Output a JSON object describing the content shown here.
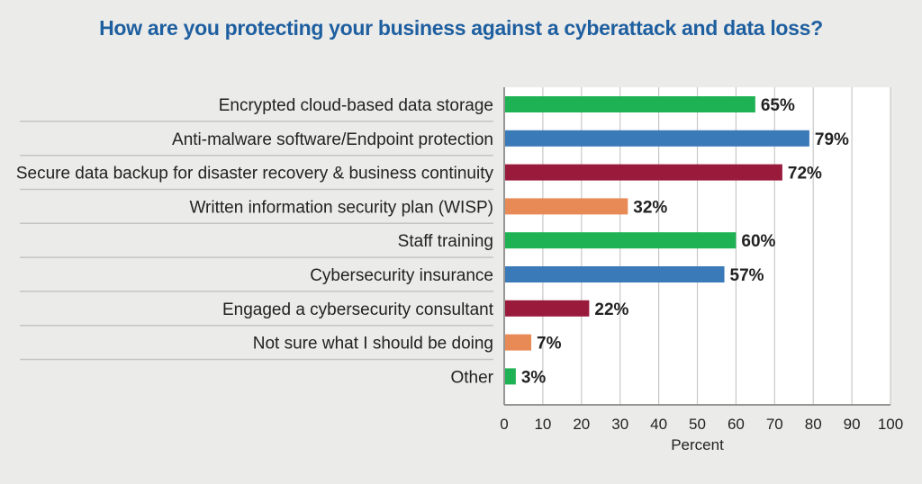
{
  "chart_data": {
    "type": "bar",
    "orientation": "horizontal",
    "title": "How are you protecting your business against a cyberattack and data loss?",
    "xlabel": "Percent",
    "ylabel": "",
    "xlim": [
      0,
      100
    ],
    "xticks": [
      0,
      10,
      20,
      30,
      40,
      50,
      60,
      70,
      80,
      90,
      100
    ],
    "grid": true,
    "categories": [
      "Encrypted cloud-based data storage",
      "Anti-malware software/Endpoint protection",
      "Secure data backup for disaster recovery & business continuity",
      "Written information security plan (WISP)",
      "Staff training",
      "Cybersecurity insurance",
      "Engaged a cybersecurity consultant",
      "Not sure what I should be doing",
      "Other"
    ],
    "values": [
      65,
      79,
      72,
      32,
      60,
      57,
      22,
      7,
      3
    ],
    "value_labels": [
      "65%",
      "79%",
      "72%",
      "32%",
      "60%",
      "57%",
      "22%",
      "7%",
      "3%"
    ],
    "colors": [
      "#1fb254",
      "#3a7ab8",
      "#9a1a3c",
      "#e88a56",
      "#1fb254",
      "#3a7ab8",
      "#9a1a3c",
      "#e88a56",
      "#1fb254"
    ]
  }
}
